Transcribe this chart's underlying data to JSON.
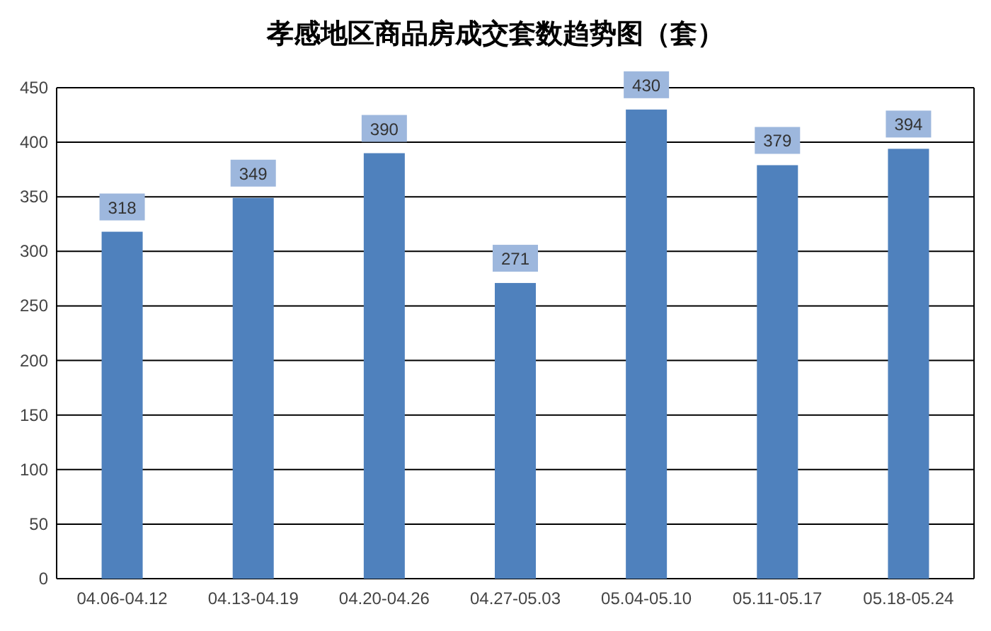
{
  "chart_data": {
    "type": "bar",
    "title": "孝感地区商品房成交套数趋势图（套）",
    "categories": [
      "04.06-04.12",
      "04.13-04.19",
      "04.20-04.26",
      "04.27-05.03",
      "05.04-05.10",
      "05.11-05.17",
      "05.18-05.24"
    ],
    "values": [
      318,
      349,
      390,
      271,
      430,
      379,
      394
    ],
    "color": "#4f81bd",
    "ylim": [
      0,
      450
    ],
    "yticks": [
      0,
      50,
      100,
      150,
      200,
      250,
      300,
      350,
      400,
      450
    ],
    "grid": "y",
    "data_labels": true
  }
}
